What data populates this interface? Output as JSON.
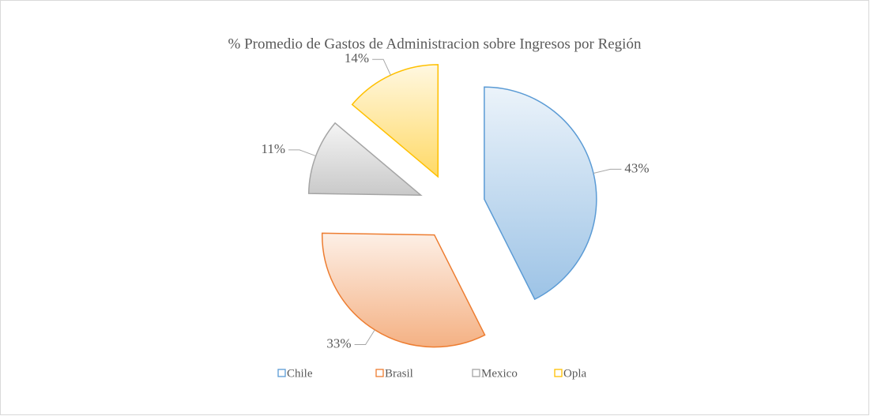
{
  "chart_data": {
    "type": "pie",
    "title": "% Promedio de Gastos de Administracion sobre Ingresos por Región",
    "categories": [
      "Chile",
      "Brasil",
      "Mexico",
      "Opla"
    ],
    "values": [
      43,
      33,
      11,
      14
    ],
    "value_labels": [
      "43%",
      "33%",
      "11%",
      "14%"
    ],
    "colors": [
      "#5b9bd5",
      "#ed7d31",
      "#a5a5a5",
      "#ffc000"
    ],
    "exploded": true,
    "legend": "bottom"
  }
}
